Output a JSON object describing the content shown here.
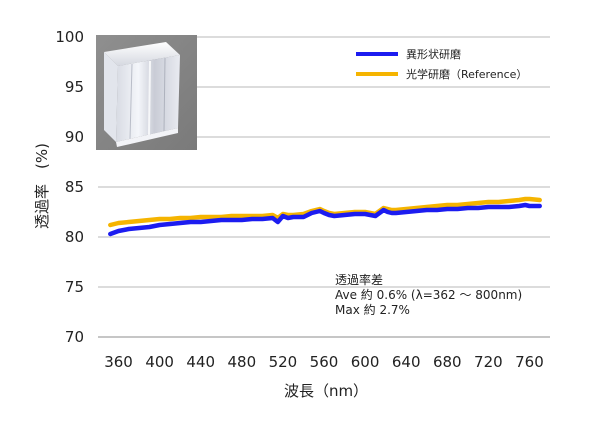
{
  "chart_data": {
    "type": "line",
    "title": "",
    "xlabel": "波長（nm）",
    "ylabel": "透過率　(%)",
    "xlim": [
      340,
      780
    ],
    "ylim": [
      70,
      100
    ],
    "x_ticks": [
      360,
      400,
      440,
      480,
      520,
      560,
      600,
      640,
      680,
      720,
      760
    ],
    "y_ticks": [
      70,
      75,
      80,
      85,
      90,
      95,
      100
    ],
    "grid": "horizontal",
    "legend_position": "top-right",
    "series": [
      {
        "name": "異形状研磨",
        "color": "#1c1cf0",
        "x": [
          352,
          360,
          370,
          380,
          390,
          400,
          410,
          420,
          430,
          440,
          450,
          460,
          470,
          480,
          490,
          500,
          510,
          515,
          520,
          525,
          530,
          540,
          548,
          552,
          556,
          560,
          565,
          570,
          580,
          590,
          600,
          610,
          618,
          622,
          626,
          630,
          640,
          650,
          660,
          670,
          680,
          690,
          700,
          710,
          720,
          730,
          740,
          750,
          756,
          760,
          770
        ],
        "y": [
          80.3,
          80.6,
          80.8,
          80.9,
          81.0,
          81.2,
          81.3,
          81.4,
          81.5,
          81.5,
          81.6,
          81.7,
          81.7,
          81.7,
          81.8,
          81.8,
          81.9,
          81.5,
          82.1,
          81.9,
          82.0,
          82.0,
          82.4,
          82.5,
          82.6,
          82.4,
          82.2,
          82.1,
          82.2,
          82.3,
          82.3,
          82.1,
          82.7,
          82.5,
          82.4,
          82.4,
          82.5,
          82.6,
          82.7,
          82.7,
          82.8,
          82.8,
          82.9,
          82.9,
          83.0,
          83.0,
          83.0,
          83.1,
          83.2,
          83.1,
          83.1
        ]
      },
      {
        "name": "光学研磨（Reference）",
        "color": "#f5b400",
        "x": [
          352,
          360,
          370,
          380,
          390,
          400,
          410,
          420,
          430,
          440,
          450,
          460,
          470,
          480,
          490,
          500,
          510,
          515,
          520,
          525,
          530,
          540,
          548,
          552,
          556,
          560,
          565,
          570,
          580,
          590,
          600,
          610,
          618,
          622,
          626,
          630,
          640,
          650,
          660,
          670,
          680,
          690,
          700,
          710,
          720,
          730,
          740,
          750,
          756,
          760,
          770
        ],
        "y": [
          81.2,
          81.4,
          81.5,
          81.6,
          81.7,
          81.8,
          81.8,
          81.9,
          81.9,
          82.0,
          82.0,
          82.0,
          82.1,
          82.1,
          82.1,
          82.1,
          82.2,
          81.9,
          82.3,
          82.2,
          82.2,
          82.3,
          82.6,
          82.7,
          82.8,
          82.6,
          82.4,
          82.3,
          82.4,
          82.5,
          82.5,
          82.3,
          82.9,
          82.8,
          82.7,
          82.7,
          82.8,
          82.9,
          83.0,
          83.1,
          83.2,
          83.2,
          83.3,
          83.4,
          83.5,
          83.5,
          83.6,
          83.7,
          83.8,
          83.8,
          83.7
        ]
      }
    ],
    "annotation": [
      "透過率差",
      "Ave 約 0.6% (λ=362 ～ 800nm)",
      "Max 約 2.7%"
    ]
  }
}
